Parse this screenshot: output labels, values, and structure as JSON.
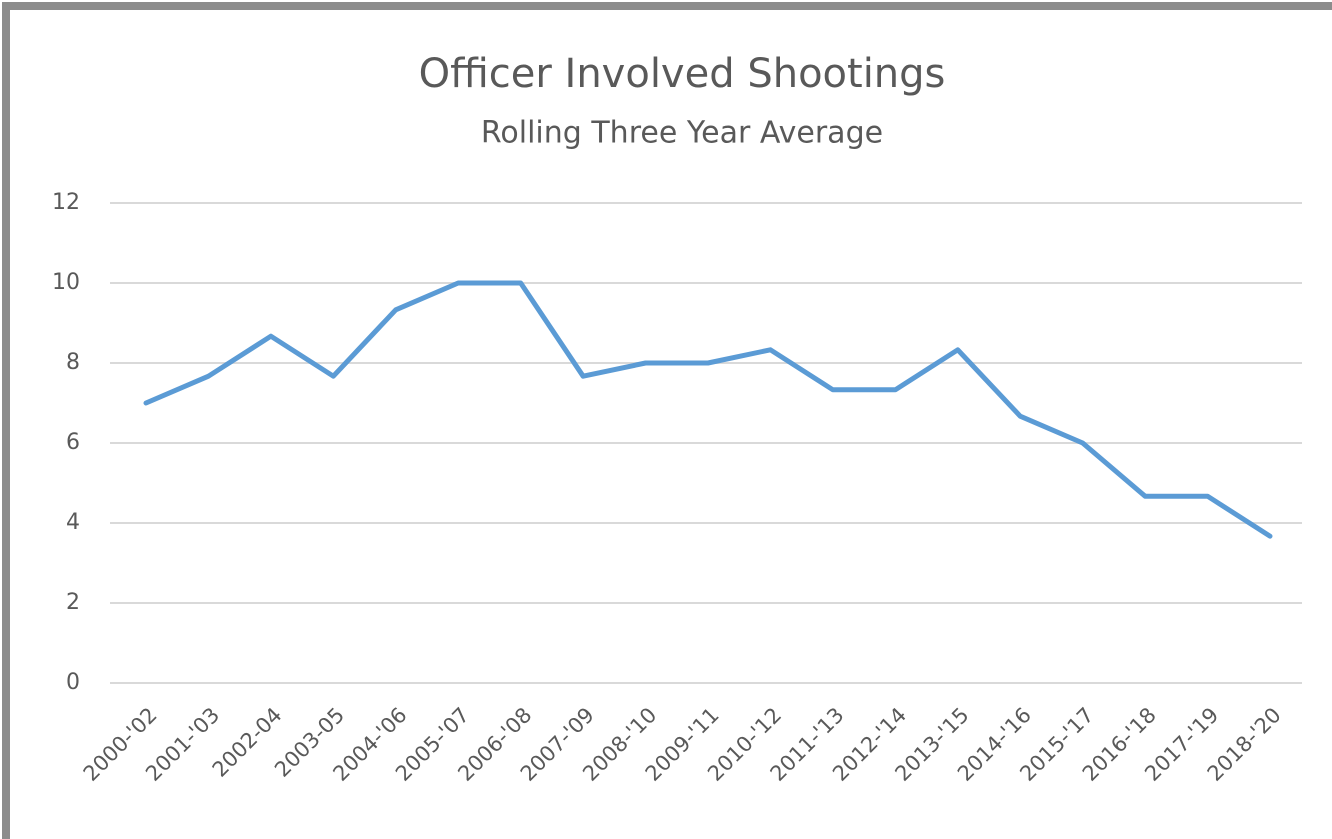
{
  "chart_data": {
    "type": "line",
    "title": "Officer Involved Shootings",
    "subtitle": "Rolling Three Year Average",
    "categories": [
      "2000-'02",
      "2001-'03",
      "2002-04",
      "2003-05",
      "2004-'06",
      "2005-'07",
      "2006-'08",
      "2007-'09",
      "2008-'10",
      "2009-'11",
      "2010-'12",
      "2011-'13",
      "2012-'14",
      "2013-'15",
      "2014-'16",
      "2015-'17",
      "2016-'18",
      "2017-'19",
      "2018-'20"
    ],
    "values": [
      7,
      7.67,
      8.67,
      7.67,
      9.33,
      10,
      10,
      7.67,
      8,
      8,
      8.33,
      7.33,
      7.33,
      8.33,
      6.67,
      6,
      4.67,
      4.67,
      3.67
    ],
    "color": "#5b9bd5",
    "ylim": [
      0,
      12
    ],
    "yticks": [
      0,
      2,
      4,
      6,
      8,
      10,
      12
    ],
    "grid": true
  }
}
